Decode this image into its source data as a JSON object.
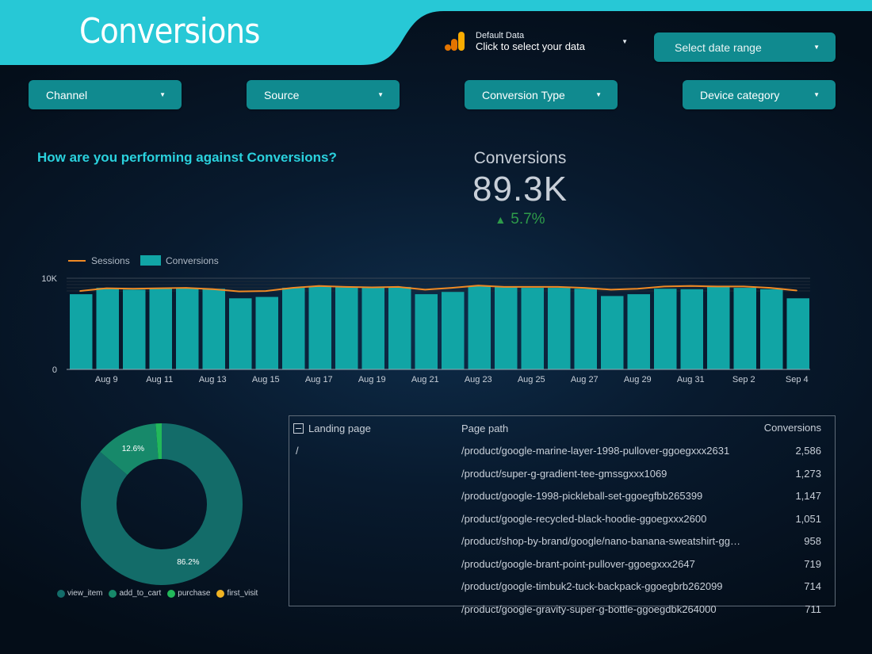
{
  "header": {
    "title": "Conversions",
    "data_source": {
      "name": "Default Data",
      "hint": "Click to select your data"
    },
    "date_range_placeholder": "Select date range"
  },
  "filters": [
    {
      "label": "Channel"
    },
    {
      "label": "Source"
    },
    {
      "label": "Conversion Type"
    },
    {
      "label": "Device category"
    }
  ],
  "section_title": "How are you performing against Conversions?",
  "scorecard": {
    "label": "Conversions",
    "value": "89.3K",
    "delta": "5.7%",
    "delta_direction": "up"
  },
  "colors": {
    "accent": "#27c8d6",
    "dropdown": "#108a8f",
    "bar": "#11a5a5",
    "line": "#f08a24",
    "positive": "#2e9b4a"
  },
  "table": {
    "headers": [
      "Landing page",
      "Page path",
      "Conversions"
    ],
    "rows": [
      {
        "landing": "/",
        "path": "/product/google-marine-layer-1998-pullover-ggoegxxx2631",
        "conversions": "2,586"
      },
      {
        "landing": "",
        "path": "/product/super-g-gradient-tee-gmssgxxx1069",
        "conversions": "1,273"
      },
      {
        "landing": "",
        "path": "/product/google-1998-pickleball-set-ggoegfbb265399",
        "conversions": "1,147"
      },
      {
        "landing": "",
        "path": "/product/google-recycled-black-hoodie-ggoegxxx2600",
        "conversions": "1,051"
      },
      {
        "landing": "",
        "path": "/product/shop-by-brand/google/nano-banana-sweatshirt-gg…",
        "conversions": "958"
      },
      {
        "landing": "",
        "path": "/product/google-brant-point-pullover-ggoegxxx2647",
        "conversions": "719"
      },
      {
        "landing": "",
        "path": "/product/google-timbuk2-tuck-backpack-ggoegbrb262099",
        "conversions": "714"
      },
      {
        "landing": "",
        "path": "/product/google-gravity-super-g-bottle-ggoegdbk264000",
        "conversions": "711"
      }
    ]
  },
  "chart_data": [
    {
      "type": "bar",
      "series": [
        {
          "name": "Sessions",
          "type": "line",
          "color": "#f08a24",
          "values": [
            8600,
            8900,
            8850,
            8900,
            8950,
            8800,
            8550,
            8600,
            8950,
            9150,
            9050,
            9000,
            9050,
            8750,
            8950,
            9200,
            9050,
            9050,
            9050,
            8950,
            8750,
            8850,
            9100,
            9150,
            9100,
            9100,
            8950,
            8650
          ]
        },
        {
          "name": "Conversions",
          "type": "bar",
          "color": "#11a5a5",
          "values": [
            8250,
            8950,
            8750,
            8950,
            8950,
            8850,
            7800,
            7950,
            8950,
            9100,
            9050,
            9000,
            9050,
            8250,
            8500,
            9150,
            9050,
            8950,
            8950,
            8850,
            8050,
            8250,
            8850,
            8800,
            9100,
            8950,
            8800,
            7800
          ]
        }
      ],
      "categories": [
        "Aug 8",
        "Aug 9",
        "Aug 10",
        "Aug 11",
        "Aug 12",
        "Aug 13",
        "Aug 14",
        "Aug 15",
        "Aug 16",
        "Aug 17",
        "Aug 18",
        "Aug 19",
        "Aug 20",
        "Aug 21",
        "Aug 22",
        "Aug 23",
        "Aug 24",
        "Aug 25",
        "Aug 26",
        "Aug 27",
        "Aug 28",
        "Aug 29",
        "Aug 30",
        "Aug 31",
        "Sep 1",
        "Sep 2",
        "Sep 3",
        "Sep 4"
      ],
      "tick_labels": [
        "Aug 9",
        "Aug 11",
        "Aug 13",
        "Aug 15",
        "Aug 17",
        "Aug 19",
        "Aug 21",
        "Aug 23",
        "Aug 25",
        "Aug 27",
        "Aug 29",
        "Aug 31",
        "Sep 2",
        "Sep 4"
      ],
      "y_ticks": [
        "0",
        "10K"
      ],
      "ylim": [
        0,
        10000
      ],
      "legend": "top-left"
    },
    {
      "type": "pie",
      "variant": "donut",
      "slices": [
        {
          "name": "view_item",
          "value": 86.2,
          "label": "86.2%",
          "color": "#136c69"
        },
        {
          "name": "add_to_cart",
          "value": 12.6,
          "label": "12.6%",
          "color": "#17896a"
        },
        {
          "name": "purchase",
          "value": 1.2,
          "label": "",
          "color": "#22b85a"
        },
        {
          "name": "first_visit",
          "value": 0.0,
          "label": "",
          "color": "#f0b323"
        }
      ],
      "legend": "bottom"
    }
  ]
}
